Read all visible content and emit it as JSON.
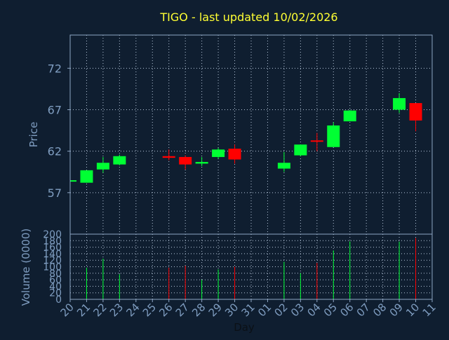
{
  "chart_data": {
    "type": "candlestick",
    "title": "TIGO - last updated 10/02/2026",
    "xlabel": "Day",
    "x_ticks": [
      "20",
      "21",
      "22",
      "23",
      "24",
      "25",
      "26",
      "27",
      "28",
      "29",
      "30",
      "31",
      "01",
      "02",
      "03",
      "04",
      "05",
      "06",
      "07",
      "08",
      "09",
      "10",
      "11"
    ],
    "price_panel": {
      "ylabel": "Price",
      "ylim": [
        52,
        76
      ],
      "y_ticks": [
        57,
        62,
        67,
        72
      ],
      "grid": true
    },
    "volume_panel": {
      "ylabel": "Volume (0000)",
      "ylim": [
        0,
        200
      ],
      "y_ticks": [
        0,
        20,
        40,
        60,
        80,
        100,
        120,
        140,
        160,
        180,
        200
      ],
      "grid": true
    },
    "candles": [
      {
        "day": "20",
        "open": 58.5,
        "close": 58.5,
        "high": 58.5,
        "low": 58.5,
        "volume": 0
      },
      {
        "day": "21",
        "open": 58.2,
        "close": 59.7,
        "high": 59.7,
        "low": 58.2,
        "volume": 97
      },
      {
        "day": "22",
        "open": 59.8,
        "close": 60.6,
        "high": 61.3,
        "low": 59.4,
        "volume": 125
      },
      {
        "day": "23",
        "open": 60.4,
        "close": 61.4,
        "high": 61.6,
        "low": 60.3,
        "volume": 77
      },
      {
        "day": "26",
        "open": 61.4,
        "close": 61.2,
        "high": 62.2,
        "low": 60.9,
        "volume": 97
      },
      {
        "day": "27",
        "open": 61.3,
        "close": 60.4,
        "high": 61.5,
        "low": 59.8,
        "volume": 103
      },
      {
        "day": "28",
        "open": 60.5,
        "close": 60.7,
        "high": 61.3,
        "low": 60.2,
        "volume": 60
      },
      {
        "day": "29",
        "open": 61.3,
        "close": 62.2,
        "high": 62.4,
        "low": 61.1,
        "volume": 92
      },
      {
        "day": "30",
        "open": 62.3,
        "close": 61.0,
        "high": 62.8,
        "low": 60.5,
        "volume": 100
      },
      {
        "day": "02",
        "open": 59.9,
        "close": 60.6,
        "high": 61.9,
        "low": 59.5,
        "volume": 115
      },
      {
        "day": "03",
        "open": 61.5,
        "close": 62.8,
        "high": 62.8,
        "low": 61.4,
        "volume": 80
      },
      {
        "day": "04",
        "open": 63.3,
        "close": 63.2,
        "high": 64.2,
        "low": 62.0,
        "volume": 112
      },
      {
        "day": "05",
        "open": 62.5,
        "close": 65.1,
        "high": 65.5,
        "low": 62.5,
        "volume": 150
      },
      {
        "day": "06",
        "open": 65.6,
        "close": 66.9,
        "high": 67.0,
        "low": 65.6,
        "volume": 178
      },
      {
        "day": "09",
        "open": 67.0,
        "close": 68.4,
        "high": 69.0,
        "low": 66.6,
        "volume": 177
      },
      {
        "day": "10",
        "open": 67.8,
        "close": 65.7,
        "high": 67.8,
        "low": 64.4,
        "volume": 188
      }
    ],
    "colors": {
      "background": "#0f1e30",
      "title": "#ffff33",
      "axis_text": "#7f9dc0",
      "frame": "#8ea6c4",
      "grid": "#b8c8dc",
      "up": "#00ff33",
      "down": "#ff0000"
    }
  }
}
